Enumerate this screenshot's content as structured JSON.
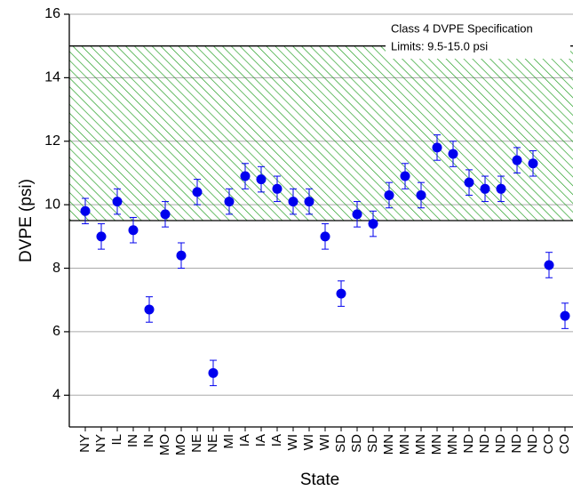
{
  "chart_data": {
    "type": "scatter",
    "x_label": "State",
    "y_label": "DVPE (psi)",
    "categories": [
      "NY",
      "NY",
      "IL",
      "IN",
      "IN",
      "MO",
      "MO",
      "NE",
      "NE",
      "MI",
      "IA",
      "IA",
      "IA",
      "WI",
      "WI",
      "WI",
      "SD",
      "SD",
      "SD",
      "MN",
      "MN",
      "MN",
      "MN",
      "MN",
      "ND",
      "ND",
      "ND",
      "ND",
      "ND",
      "CO",
      "CO"
    ],
    "values": [
      9.8,
      9.0,
      10.1,
      9.2,
      6.7,
      9.7,
      8.4,
      10.4,
      4.7,
      10.1,
      10.9,
      10.8,
      10.5,
      10.1,
      10.1,
      9.0,
      7.2,
      9.7,
      9.4,
      10.3,
      10.9,
      10.3,
      11.8,
      11.6,
      10.7,
      10.5,
      10.5,
      11.4,
      11.3,
      8.1,
      6.5
    ],
    "errors": [
      0.4,
      0.4,
      0.4,
      0.4,
      0.4,
      0.4,
      0.4,
      0.4,
      0.4,
      0.4,
      0.4,
      0.4,
      0.4,
      0.4,
      0.4,
      0.4,
      0.4,
      0.4,
      0.4,
      0.4,
      0.4,
      0.4,
      0.4,
      0.4,
      0.4,
      0.4,
      0.4,
      0.4,
      0.4,
      0.4,
      0.4
    ],
    "color": "#0000ee",
    "ylim": [
      3,
      16
    ],
    "yticks": [
      4,
      6,
      8,
      10,
      12,
      14,
      16
    ],
    "grid": true,
    "spec_band": [
      9.5,
      15.0
    ],
    "band_color": "#1a9a1a",
    "annotation": [
      "Class 4 DVPE Specification",
      "Limits: 9.5-15.0 psi"
    ]
  }
}
